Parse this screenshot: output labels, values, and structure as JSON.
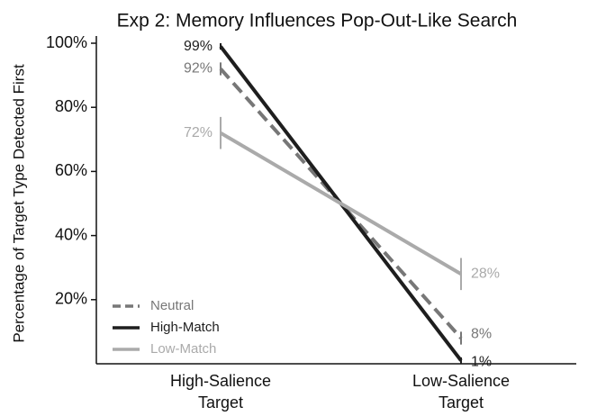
{
  "chart_data": {
    "type": "line",
    "title": "Exp 2: Memory Influences Pop-Out-Like Search",
    "y_label": "Percentage of Target Type Detected First",
    "categories": [
      "High-Salience Target",
      "Low-Salience Target"
    ],
    "ylim": [
      0,
      100
    ],
    "yticks": [
      {
        "value": 20,
        "label": "20%"
      },
      {
        "value": 40,
        "label": "40%"
      },
      {
        "value": 60,
        "label": "60%"
      },
      {
        "value": 80,
        "label": "80%"
      },
      {
        "value": 100,
        "label": "100%"
      }
    ],
    "legend": "lower left",
    "series": [
      {
        "name": "Neutral",
        "color": "#777777",
        "dashed": true,
        "values": [
          92,
          8
        ],
        "value_labels": [
          "92%",
          "8%"
        ],
        "errors": [
          2,
          2
        ]
      },
      {
        "name": "High-Match",
        "color": "#1e1e1e",
        "dashed": false,
        "values": [
          99,
          1
        ],
        "value_labels": [
          "99%",
          "1%"
        ],
        "errors": [
          1,
          1
        ]
      },
      {
        "name": "Low-Match",
        "color": "#aaaaaa",
        "dashed": false,
        "values": [
          72,
          28
        ],
        "value_labels": [
          "72%",
          "28%"
        ],
        "errors": [
          5,
          5
        ]
      }
    ]
  }
}
